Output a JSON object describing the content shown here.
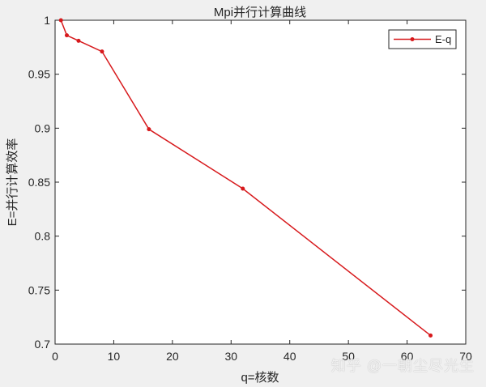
{
  "chart_data": {
    "type": "line",
    "title": "Mpi并行计算曲线",
    "xlabel": "q=核数",
    "ylabel": "E=并行计算效率",
    "xlim": [
      0,
      70
    ],
    "ylim": [
      0.7,
      1.0
    ],
    "xticks": [
      0,
      10,
      20,
      30,
      40,
      50,
      60,
      70
    ],
    "yticks": [
      0.7,
      0.75,
      0.8,
      0.85,
      0.9,
      0.95,
      1
    ],
    "xtick_labels": [
      "0",
      "10",
      "20",
      "30",
      "40",
      "50",
      "60",
      "70"
    ],
    "ytick_labels": [
      "0.7",
      "0.75",
      "0.8",
      "0.85",
      "0.9",
      "0.95",
      "1"
    ],
    "grid": false,
    "legend_position": "upper right",
    "series": [
      {
        "name": "E-q",
        "color": "#d7191c",
        "marker": "dot",
        "x": [
          1,
          2,
          4,
          8,
          16,
          32,
          64
        ],
        "y": [
          1.0,
          0.986,
          0.981,
          0.971,
          0.899,
          0.844,
          0.708
        ]
      }
    ]
  },
  "watermark": "知乎 @一朝尘尽光生"
}
